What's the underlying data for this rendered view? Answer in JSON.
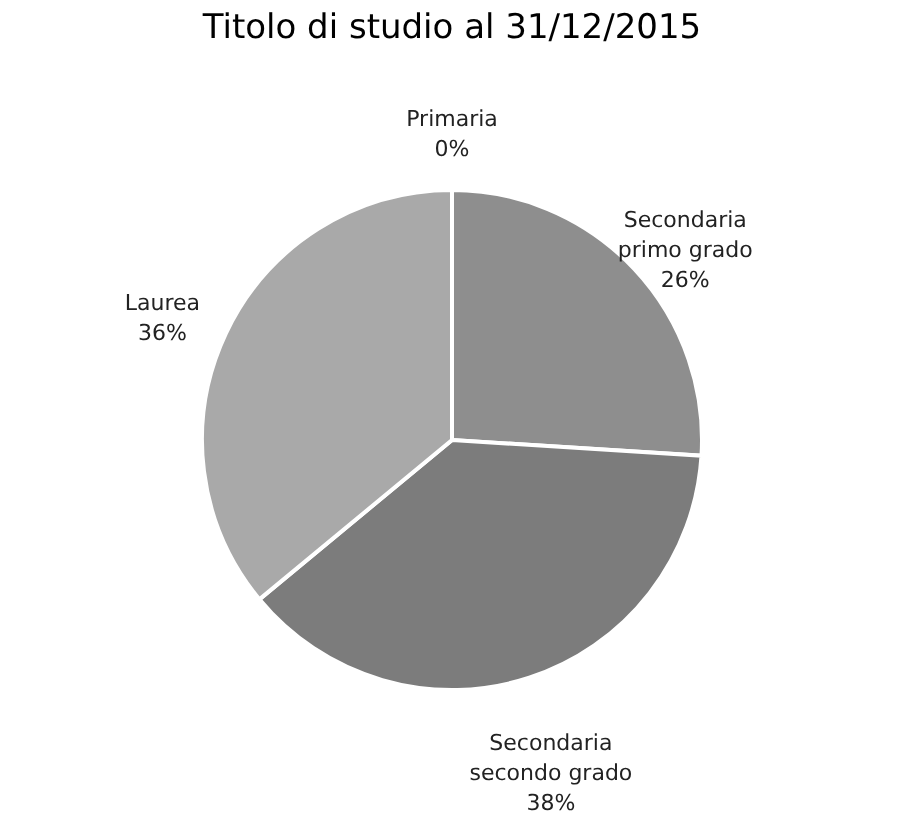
{
  "chart_data": {
    "type": "pie",
    "title": "Titolo di studio al 31/12/2015",
    "categories": [
      "Primaria",
      "Secondaria primo grado",
      "Secondaria secondo grado",
      "Laurea"
    ],
    "values": [
      0,
      26,
      38,
      36
    ],
    "value_labels": [
      "0%",
      "26%",
      "38%",
      "36%"
    ],
    "colors": [
      "#9a9a9a",
      "#8e8e8e",
      "#7c7c7c",
      "#a9a9a9"
    ],
    "legend": false
  }
}
